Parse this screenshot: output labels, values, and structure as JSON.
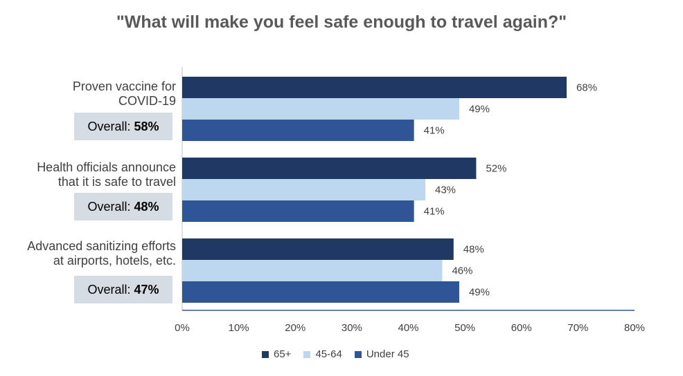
{
  "chart_data": {
    "type": "bar",
    "orientation": "horizontal",
    "title": "\"What will make you feel safe enough to travel again?\"",
    "categories": [
      {
        "label_lines": [
          "Proven vaccine for",
          "COVID-19"
        ],
        "overall_label": "Overall:",
        "overall_value": "58%"
      },
      {
        "label_lines": [
          "Health officials announce",
          "that it is safe to travel"
        ],
        "overall_label": "Overall:",
        "overall_value": "48%"
      },
      {
        "label_lines": [
          "Advanced sanitizing efforts",
          "at airports, hotels, etc."
        ],
        "overall_label": "Overall:",
        "overall_value": "47%"
      }
    ],
    "series": [
      {
        "name": "65+",
        "color": "#1f3864",
        "values": [
          68,
          52,
          48
        ]
      },
      {
        "name": "45-64",
        "color": "#bdd7ee",
        "values": [
          49,
          43,
          46
        ]
      },
      {
        "name": "Under 45",
        "color": "#2f5597",
        "values": [
          41,
          41,
          49
        ]
      }
    ],
    "value_suffix": "%",
    "xlim": [
      0,
      80
    ],
    "x_ticks": [
      "0%",
      "10%",
      "20%",
      "30%",
      "40%",
      "50%",
      "60%",
      "70%",
      "80%"
    ],
    "grid": false,
    "legend_position": "bottom"
  }
}
